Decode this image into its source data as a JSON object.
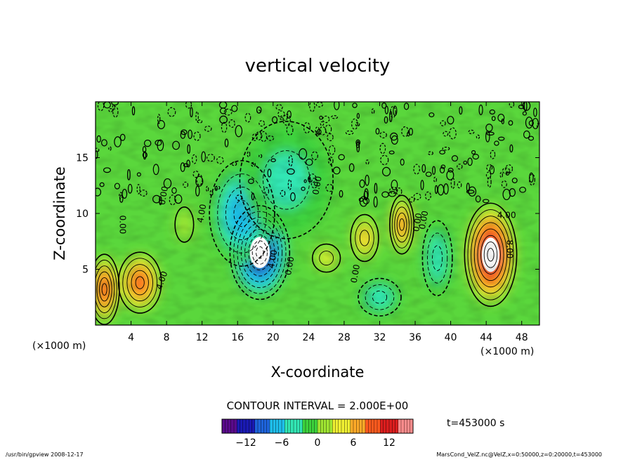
{
  "chart_data": {
    "type": "heatmap",
    "title": "vertical velocity",
    "xlabel": "X-coordinate",
    "ylabel": "Z-coordinate",
    "x_unit_left": "(×1000 m)",
    "x_unit_right": "(×1000 m)",
    "xlim": [
      0,
      50
    ],
    "ylim": [
      0,
      20
    ],
    "x_ticks": [
      4,
      8,
      12,
      16,
      20,
      24,
      28,
      32,
      36,
      40,
      44,
      48
    ],
    "y_ticks": [
      5,
      10,
      15
    ],
    "contour_interval_label": "CONTOUR INTERVAL = 2.000E+00",
    "time_label": "t=453000 s",
    "colorbar": {
      "range": [
        -16,
        16
      ],
      "ticks": [
        -12,
        -6,
        0,
        6,
        12
      ],
      "tick_labels": [
        "−12",
        "−6",
        "0",
        "6",
        "12"
      ],
      "colors": [
        "#5a0a8c",
        "#1a1ab4",
        "#1e64dc",
        "#1ebeeb",
        "#32e6b4",
        "#3cd23c",
        "#a0e632",
        "#f0f032",
        "#ffaa28",
        "#ff5a1e",
        "#dc1e1e",
        "#ff8c8c"
      ]
    },
    "features": [
      {
        "x": 18.5,
        "z": 6.5,
        "value": -16,
        "rx": 3.2,
        "rz": 4.0
      },
      {
        "x": 16.5,
        "z": 10.0,
        "value": -8,
        "rx": 3.5,
        "rz": 4.5
      },
      {
        "x": 21.5,
        "z": 13.0,
        "value": -4,
        "rx": 5.0,
        "rz": 5.0
      },
      {
        "x": 44.5,
        "z": 6.3,
        "value": 16,
        "rx": 2.8,
        "rz": 4.4
      },
      {
        "x": 5.0,
        "z": 3.8,
        "value": 10,
        "rx": 2.3,
        "rz": 2.6
      },
      {
        "x": 1.0,
        "z": 3.2,
        "value": 12,
        "rx": 1.6,
        "rz": 3.0
      },
      {
        "x": 34.5,
        "z": 9.0,
        "value": 9,
        "rx": 1.3,
        "rz": 2.5
      },
      {
        "x": 30.3,
        "z": 7.8,
        "value": 6,
        "rx": 1.5,
        "rz": 2.0
      },
      {
        "x": 32.0,
        "z": 2.5,
        "value": -5,
        "rx": 2.3,
        "rz": 1.6
      },
      {
        "x": 38.5,
        "z": 6.0,
        "value": -5,
        "rx": 1.6,
        "rz": 3.2
      },
      {
        "x": 26.0,
        "z": 6.0,
        "value": 3,
        "rx": 1.5,
        "rz": 1.2
      },
      {
        "x": 10.0,
        "z": 9.0,
        "value": 2,
        "rx": 1.0,
        "rz": 1.5
      }
    ],
    "contour_labels": [
      {
        "x": 3.0,
        "z": 9.0,
        "text": "0.00",
        "rotate": 90
      },
      {
        "x": 7.5,
        "z": 4.0,
        "text": "4.00",
        "rotate": -70
      },
      {
        "x": 7.7,
        "z": 11.6,
        "text": "0.00",
        "rotate": -80
      },
      {
        "x": 12.0,
        "z": 10.0,
        "text": "4.00",
        "rotate": -80
      },
      {
        "x": 20.0,
        "z": 5.9,
        "text": "4.00",
        "rotate": -80
      },
      {
        "x": 21.9,
        "z": 5.3,
        "text": "0.00",
        "rotate": -80
      },
      {
        "x": 25.0,
        "z": 12.5,
        "text": "0.00",
        "rotate": -80
      },
      {
        "x": 29.3,
        "z": 4.6,
        "text": "0.00",
        "rotate": -80
      },
      {
        "x": 36.3,
        "z": 9.2,
        "text": "0.00",
        "rotate": -80
      },
      {
        "x": 37.0,
        "z": 9.4,
        "text": "0.00",
        "rotate": -80
      },
      {
        "x": 46.3,
        "z": 9.8,
        "text": "4.00",
        "rotate": 0
      },
      {
        "x": 46.6,
        "z": 6.8,
        "text": "8.00",
        "rotate": 90
      }
    ]
  },
  "footer": {
    "left": "/usr/bin/gpview  2008-12-17",
    "right": "MarsCond_VelZ.nc@VelZ,x=0:50000,z=0:20000,t=453000"
  }
}
